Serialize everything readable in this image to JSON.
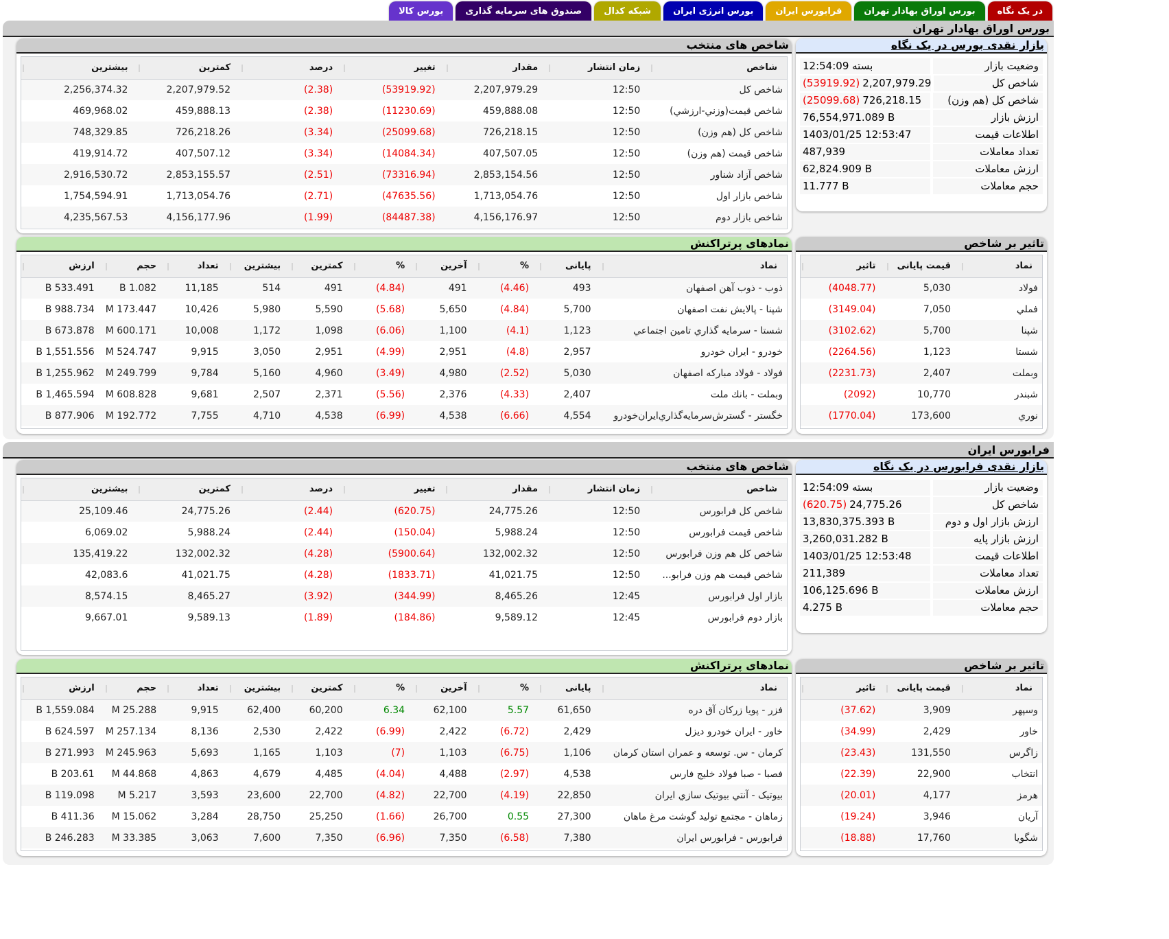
{
  "tabs": [
    {
      "label": "در یک نگاه",
      "color": "#b30000"
    },
    {
      "label": "بورس اوراق بهادار تهران",
      "color": "#0a7a0a"
    },
    {
      "label": "فرابورس ایران",
      "color": "#e0a800"
    },
    {
      "label": "بورس انرژی ایران",
      "color": "#0000b0"
    },
    {
      "label": "شبکه کدال",
      "color": "#b0a800"
    },
    {
      "label": "صندوق های سرمایه گذاری",
      "color": "#330066"
    },
    {
      "label": "بورس کالا",
      "color": "#6633cc"
    }
  ],
  "tse": {
    "section_title": "بورس اوراق بهادار تهران",
    "overview": {
      "title": "بازار نقدی بورس در یک نگاه",
      "rows": [
        {
          "label": "وضعیت بازار",
          "value": "بسته 12:54:09",
          "change": ""
        },
        {
          "label": "شاخص کل",
          "value": "2,207,979.29",
          "change": "(53919.92)"
        },
        {
          "label": "شاخص کل (هم وزن)",
          "value": "726,218.15",
          "change": "(25099.68)"
        },
        {
          "label": "ارزش بازار",
          "value": "76,554,971.089 B",
          "change": ""
        },
        {
          "label": "اطلاعات قیمت",
          "value": "1403/01/25 12:53:47",
          "change": ""
        },
        {
          "label": "تعداد معاملات",
          "value": "487,939",
          "change": ""
        },
        {
          "label": "ارزش معاملات",
          "value": "62,824.909 B",
          "change": ""
        },
        {
          "label": "حجم معاملات",
          "value": "11.777 B",
          "change": ""
        }
      ]
    },
    "indices": {
      "title": "شاخص های منتخب",
      "columns": [
        "شاخص",
        "زمان انتشار",
        "مقدار",
        "تغییر",
        "درصد",
        "کمترین",
        "بیشترین"
      ],
      "rows": [
        [
          "شاخص کل",
          "12:50",
          "2,207,979.29",
          "(53919.92)",
          "(2.38)",
          "2,207,979.52",
          "2,256,374.32"
        ],
        [
          "شاخص قیمت(وزني-ارزشي)",
          "12:50",
          "459,888.08",
          "(11230.69)",
          "(2.38)",
          "459,888.13",
          "469,968.02"
        ],
        [
          "شاخص کل (هم وزن)",
          "12:50",
          "726,218.15",
          "(25099.68)",
          "(3.34)",
          "726,218.26",
          "748,329.85"
        ],
        [
          "شاخص قیمت (هم وزن)",
          "12:50",
          "407,507.05",
          "(14084.34)",
          "(3.34)",
          "407,507.12",
          "419,914.72"
        ],
        [
          "شاخص آزاد شناور",
          "12:50",
          "2,853,154.56",
          "(73316.94)",
          "(2.51)",
          "2,853,155.57",
          "2,916,530.72"
        ],
        [
          "شاخص بازار اول",
          "12:50",
          "1,713,054.76",
          "(47635.56)",
          "(2.71)",
          "1,713,054.76",
          "1,754,594.91"
        ],
        [
          "شاخص بازار دوم",
          "12:50",
          "4,156,176.97",
          "(84487.38)",
          "(1.99)",
          "4,156,177.96",
          "4,235,567.53"
        ]
      ]
    },
    "impact": {
      "title": "تاثیر بر شاخص",
      "columns": [
        "نماد",
        "قیمت پایانی",
        "تاثیر"
      ],
      "rows": [
        [
          "فولاد",
          "5,030",
          "(4048.77)"
        ],
        [
          "فملي",
          "7,050",
          "(3149.04)"
        ],
        [
          "شپنا",
          "5,700",
          "(3102.62)"
        ],
        [
          "شستا",
          "1,123",
          "(2264.56)"
        ],
        [
          "وبملت",
          "2,407",
          "(2231.73)"
        ],
        [
          "شبندر",
          "10,770",
          "(2092)"
        ],
        [
          "نوري",
          "173,600",
          "(1770.04)"
        ]
      ]
    },
    "active": {
      "title": "نمادهای پرتراکنش",
      "columns": [
        "نماد",
        "پایانی",
        "%",
        "آخرین",
        "%",
        "کمترین",
        "بیشترین",
        "تعداد",
        "حجم",
        "ارزش"
      ],
      "rows": [
        [
          "ذوب - ذوب آهن اصفهان",
          "493",
          "(4.46)",
          "491",
          "(4.84)",
          "491",
          "514",
          "11,185",
          "1.082 B",
          "533.491 B"
        ],
        [
          "شپنا - پالایش نفت اصفهان",
          "5,700",
          "(4.84)",
          "5,650",
          "(5.68)",
          "5,590",
          "5,980",
          "10,426",
          "173.447 M",
          "988.734 B"
        ],
        [
          "شستا - سرمایه گذاري تامين اجتماعي",
          "1,123",
          "(4.1)",
          "1,100",
          "(6.06)",
          "1,098",
          "1,172",
          "10,008",
          "600.171 M",
          "673.878 B"
        ],
        [
          "خودرو - ایران خودرو",
          "2,957",
          "(4.8)",
          "2,951",
          "(4.99)",
          "2,951",
          "3,050",
          "9,915",
          "524.747 M",
          "1,551.556 B"
        ],
        [
          "فولاد - فولاد مبارکه اصفهان",
          "5,030",
          "(2.52)",
          "4,980",
          "(3.49)",
          "4,960",
          "5,160",
          "9,784",
          "249.799 M",
          "1,255.962 B"
        ],
        [
          "وبملت - بانك ملت",
          "2,407",
          "(4.33)",
          "2,376",
          "(5.56)",
          "2,371",
          "2,507",
          "9,681",
          "608.828 M",
          "1,465.594 B"
        ],
        [
          "خگستر - گسترش‌سرمايه‌گذاري‌ايران‌خودرو",
          "4,554",
          "(6.66)",
          "4,538",
          "(6.99)",
          "4,538",
          "4,710",
          "7,755",
          "192.772 M",
          "877.906 B"
        ]
      ]
    }
  },
  "ifb": {
    "section_title": "فرابورس ایران",
    "overview": {
      "title": "بازار نقدی فرابورس در یک نگاه",
      "rows": [
        {
          "label": "وضعیت بازار",
          "value": "بسته 12:54:09",
          "change": ""
        },
        {
          "label": "شاخص کل",
          "value": "24,775.26",
          "change": "(620.75)"
        },
        {
          "label": "ارزش بازار اول و دوم",
          "value": "13,830,375.393 B",
          "change": ""
        },
        {
          "label": "ارزش بازار پایه",
          "value": "3,260,031.282 B",
          "change": ""
        },
        {
          "label": "اطلاعات قیمت",
          "value": "1403/01/25 12:53:48",
          "change": ""
        },
        {
          "label": "تعداد معاملات",
          "value": "211,389",
          "change": ""
        },
        {
          "label": "ارزش معاملات",
          "value": "106,125.696 B",
          "change": ""
        },
        {
          "label": "حجم معاملات",
          "value": "4.275 B",
          "change": ""
        }
      ]
    },
    "indices": {
      "title": "شاخص های منتخب",
      "columns": [
        "شاخص",
        "زمان انتشار",
        "مقدار",
        "تغییر",
        "درصد",
        "کمترین",
        "بیشترین"
      ],
      "rows": [
        [
          "شاخص کل فرابورس",
          "12:50",
          "24,775.26",
          "(620.75)",
          "(2.44)",
          "24,775.26",
          "25,109.46"
        ],
        [
          "شاخص قیمت فرابورس",
          "12:50",
          "5,988.24",
          "(150.04)",
          "(2.44)",
          "5,988.24",
          "6,069.02"
        ],
        [
          "شاخص کل هم وزن فرابورس",
          "12:50",
          "132,002.32",
          "(5900.64)",
          "(4.28)",
          "132,002.32",
          "135,419.22"
        ],
        [
          "شاخص قیمت هم وزن فرابو...",
          "12:50",
          "41,021.75",
          "(1833.71)",
          "(4.28)",
          "41,021.75",
          "42,083.6"
        ],
        [
          "بازار اول فرابورس",
          "12:45",
          "8,465.26",
          "(344.99)",
          "(3.92)",
          "8,465.27",
          "8,574.15"
        ],
        [
          "بازار دوم فرابورس",
          "12:45",
          "9,589.12",
          "(184.86)",
          "(1.89)",
          "9,589.13",
          "9,667.01"
        ]
      ]
    },
    "impact": {
      "title": "تاثیر بر شاخص",
      "columns": [
        "نماد",
        "قیمت پایانی",
        "تاثیر"
      ],
      "rows": [
        [
          "وسپهر",
          "3,909",
          "(37.62)"
        ],
        [
          "خاور",
          "2,429",
          "(34.99)"
        ],
        [
          "زاگرس",
          "131,550",
          "(23.43)"
        ],
        [
          "انتخاب",
          "22,900",
          "(22.39)"
        ],
        [
          "هرمز",
          "4,177",
          "(20.01)"
        ],
        [
          "آریان",
          "3,946",
          "(19.24)"
        ],
        [
          "شگویا",
          "17,760",
          "(18.88)"
        ]
      ]
    },
    "active": {
      "title": "نمادهای پرتراکنش",
      "columns": [
        "نماد",
        "پایانی",
        "%",
        "آخرین",
        "%",
        "کمترین",
        "بیشترین",
        "تعداد",
        "حجم",
        "ارزش"
      ],
      "rows": [
        [
          "فزر - پویا زرکان آق دره",
          "61,650",
          "5.57",
          "62,100",
          "6.34",
          "60,200",
          "62,400",
          "9,915",
          "25.288 M",
          "1,559.084 B"
        ],
        [
          "خاور - ایران خودرو دیزل",
          "2,429",
          "(6.72)",
          "2,422",
          "(6.99)",
          "2,422",
          "2,530",
          "8,136",
          "257.134 M",
          "624.597 B"
        ],
        [
          "کرمان - س. توسعه و عمران استان کرمان",
          "1,106",
          "(6.75)",
          "1,103",
          "(7)",
          "1,103",
          "1,165",
          "5,693",
          "245.963 M",
          "271.993 B"
        ],
        [
          "فصبا - صبا فولاد خلیج فارس",
          "4,538",
          "(2.97)",
          "4,488",
          "(4.04)",
          "4,485",
          "4,679",
          "4,863",
          "44.868 M",
          "203.61 B"
        ],
        [
          "بیوتیک - آنتي بیوتیک سازي ایران",
          "22,850",
          "(4.19)",
          "22,700",
          "(4.82)",
          "22,700",
          "23,600",
          "3,593",
          "5.217 M",
          "119.098 B"
        ],
        [
          "زماهان - مجتمع تولید گوشت مرغ ماهان",
          "27,300",
          "0.55",
          "26,700",
          "(1.66)",
          "25,250",
          "28,750",
          "3,284",
          "15.062 M",
          "411.36 B"
        ],
        [
          "فرابورس - فرابورس ایران",
          "7,380",
          "(6.58)",
          "7,350",
          "(6.96)",
          "7,350",
          "7,600",
          "3,063",
          "33.385 M",
          "246.283 B"
        ]
      ]
    }
  }
}
